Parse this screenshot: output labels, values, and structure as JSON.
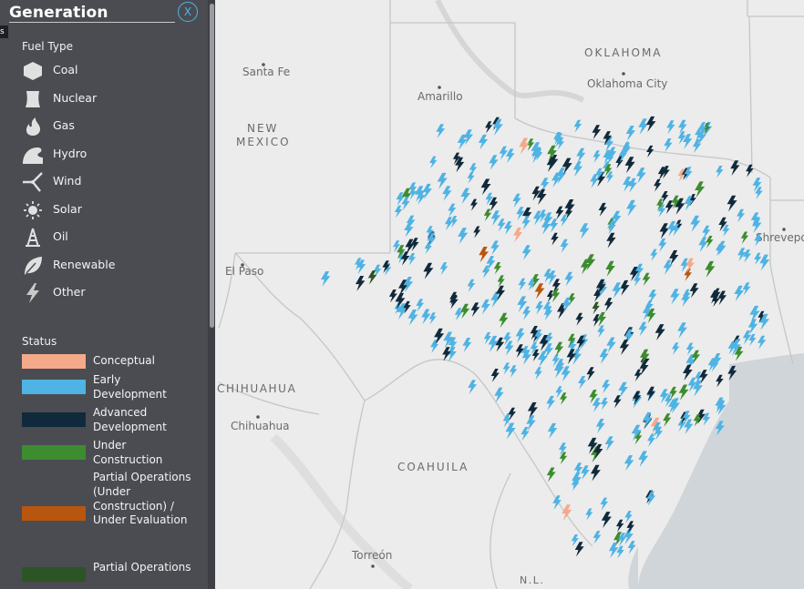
{
  "panel": {
    "title": "Generation",
    "close_label": "X",
    "tooltip_fragment": "s",
    "fuel_type_label": "Fuel Type",
    "fuel_types": [
      {
        "label": "Coal",
        "icon": "coal-icon"
      },
      {
        "label": "Nuclear",
        "icon": "nuclear-icon"
      },
      {
        "label": "Gas",
        "icon": "gas-icon"
      },
      {
        "label": "Hydro",
        "icon": "hydro-icon"
      },
      {
        "label": "Wind",
        "icon": "wind-icon"
      },
      {
        "label": "Solar",
        "icon": "solar-icon"
      },
      {
        "label": "Oil",
        "icon": "oil-icon"
      },
      {
        "label": "Renewable",
        "icon": "renewable-icon"
      },
      {
        "label": "Other",
        "icon": "other-icon"
      }
    ],
    "status_label": "Status",
    "statuses": [
      {
        "label": "Conceptual",
        "color": "#f4a98b"
      },
      {
        "label": "Early Development",
        "color": "#4fb3e3"
      },
      {
        "label": "Advanced Development",
        "color": "#102a3b"
      },
      {
        "label": "Under Construction",
        "color": "#3d8c2f"
      },
      {
        "label": "Partial Operations (Under Construction) / Under Evaluation",
        "color": "#b8560f"
      },
      {
        "label": "Partial Operations",
        "color": "#2d5425"
      }
    ]
  },
  "map": {
    "labels": {
      "oklahoma": "OKLAHOMA",
      "oklahoma_city": "Oklahoma City",
      "santa_fe": "Santa Fe",
      "amarillo": "Amarillo",
      "new": "NEW",
      "mexico": "MEXICO",
      "el_paso": "El Paso",
      "shreveport": "Shrevepo",
      "chihuahua_state": "CHIHUAHUA",
      "chihuahua_city": "Chihuahua",
      "coahuila": "COAHUILA",
      "torreon": "Torreón",
      "nl": "N.L."
    },
    "colors": {
      "land": "#ececec",
      "water": "#cfd5d8",
      "border": "#c4c4c4"
    }
  }
}
